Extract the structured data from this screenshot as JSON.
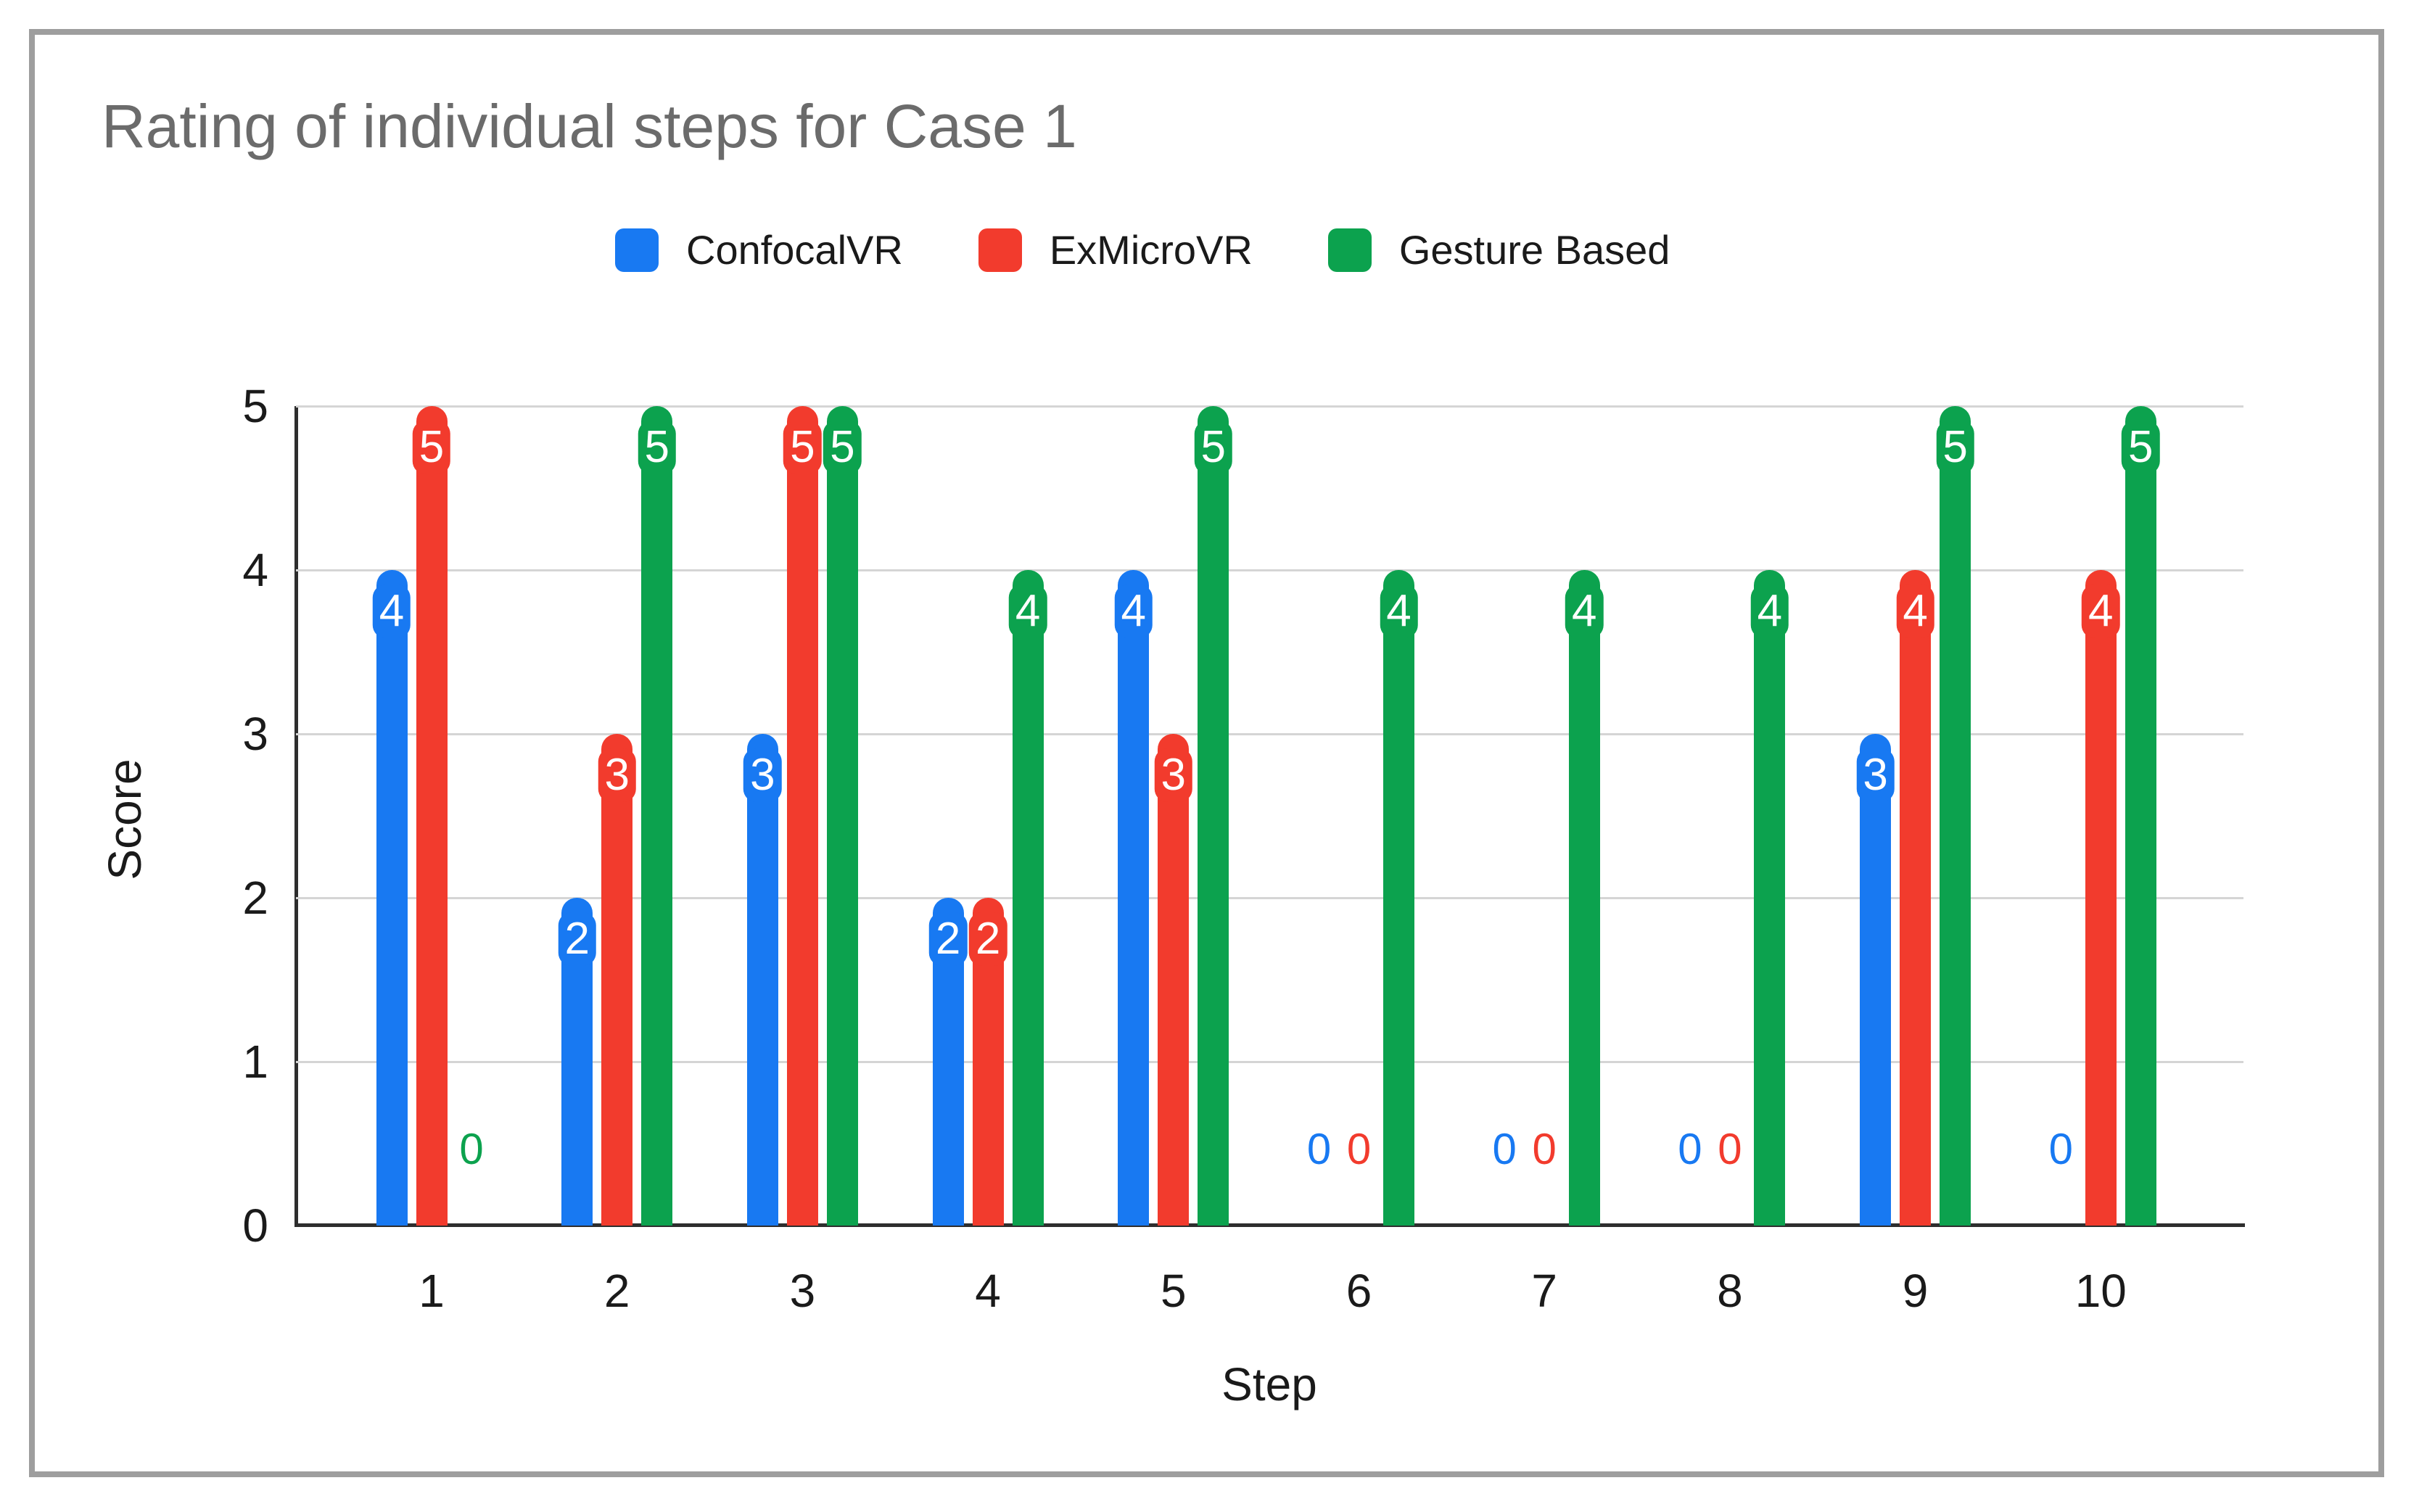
{
  "title": "Rating of individual steps for Case 1",
  "colors": {
    "confocalvr_blue": "#1879F2",
    "exmicrovr_red": "#F23B2D",
    "gesture_green": "#0CA24E",
    "title_gray": "#6B6B6B",
    "gridline_gray": "#D5D5D5",
    "axis_dark": "#2E2E2E",
    "frame_gray": "#9E9E9E",
    "bar_label_text": "#FFFFFF"
  },
  "chart_data": {
    "type": "bar",
    "title": "Rating of individual steps for Case 1",
    "xlabel": "Step",
    "ylabel": "Score",
    "ylim": [
      0,
      5
    ],
    "y_ticks": [
      0,
      1,
      2,
      3,
      4,
      5
    ],
    "categories": [
      "1",
      "2",
      "3",
      "4",
      "5",
      "6",
      "7",
      "8",
      "9",
      "10"
    ],
    "series": [
      {
        "name": "ConfocalVR",
        "color": "#1879F2",
        "values": [
          4,
          2,
          3,
          2,
          4,
          0,
          0,
          0,
          3,
          0
        ]
      },
      {
        "name": "ExMicroVR",
        "color": "#F23B2D",
        "values": [
          5,
          3,
          5,
          2,
          3,
          0,
          0,
          0,
          4,
          4
        ]
      },
      {
        "name": "Gesture Based",
        "color": "#0CA24E",
        "values": [
          0,
          5,
          5,
          4,
          5,
          4,
          4,
          4,
          5,
          5
        ]
      }
    ],
    "grid": true,
    "legend_position": "top",
    "bar_value_labels": "white numerals inside top of bars; zero values shown as series-colored numerals above axis"
  }
}
